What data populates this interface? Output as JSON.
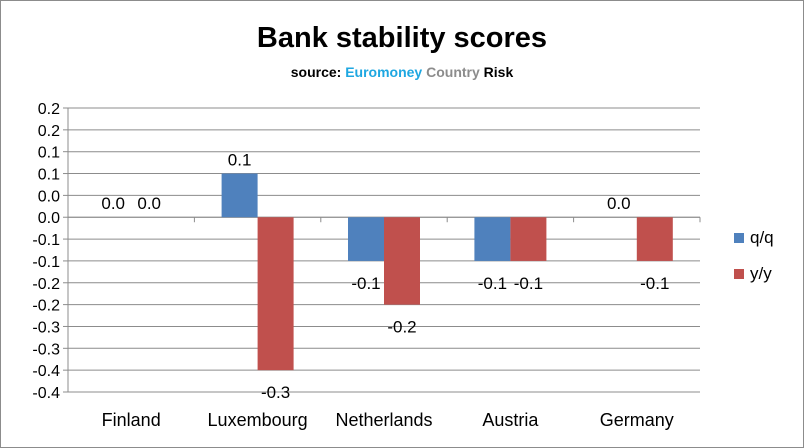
{
  "chart_data": {
    "type": "bar",
    "title": "Bank stability scores",
    "subtitle": {
      "prefix": "source: ",
      "word1": "Euromoney",
      "word2": "Country",
      "word3": "Risk"
    },
    "colors": {
      "word1": "#1ea7e1",
      "word2": "#8c8c8c",
      "word3": "#000000",
      "grid": "#8c8c8c",
      "axis": "#8c8c8c"
    },
    "categories": [
      "Finland",
      "Luxembourg",
      "Netherlands",
      "Austria",
      "Germany"
    ],
    "series": [
      {
        "name": "q/q",
        "color": "#4f81bd",
        "values": [
          0.0,
          0.1,
          -0.1,
          -0.1,
          0.0
        ],
        "labels": [
          "0.0",
          "0.1",
          "-0.1",
          "-0.1",
          "0.0"
        ]
      },
      {
        "name": "y/y",
        "color": "#c0504d",
        "values": [
          0.0,
          -0.35,
          -0.2,
          -0.1,
          -0.1
        ],
        "labels": [
          "0.0",
          "-0.3",
          "-0.2",
          "-0.1",
          "-0.1"
        ]
      }
    ],
    "label_visible": [
      [
        true,
        true,
        true,
        true,
        true
      ],
      [
        true,
        true,
        true,
        true,
        true
      ]
    ],
    "yticks": [
      0.25,
      0.2,
      0.15,
      0.1,
      0.05,
      0.0,
      -0.05,
      -0.1,
      -0.15,
      -0.2,
      -0.25,
      -0.3,
      -0.35,
      -0.4
    ],
    "ytick_labels": [
      "0.2",
      "0.2",
      "0.1",
      "0.1",
      "0.0",
      "0.0",
      "-0.1",
      "-0.1",
      "-0.2",
      "-0.2",
      "-0.3",
      "-0.3",
      "-0.4",
      "-0.4"
    ],
    "ylim": [
      -0.4,
      0.25
    ],
    "xlabel": "",
    "ylabel": "",
    "grid": true,
    "legend_position": "right"
  }
}
